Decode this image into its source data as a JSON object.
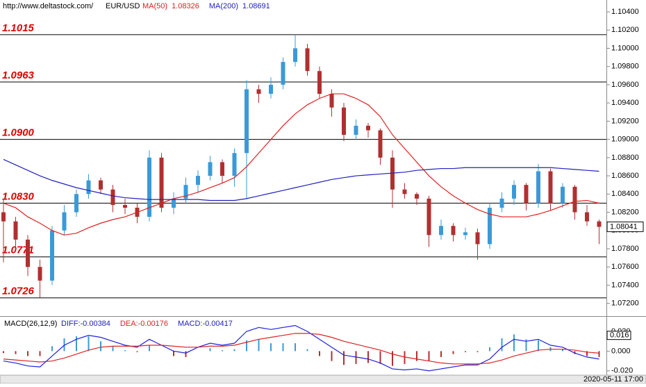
{
  "chart_data": [
    {
      "type": "candlestick",
      "source": "http://www.deltastock.com/",
      "symbol": "EUR/USD",
      "ylim": [
        1.0706,
        1.1053
      ],
      "yticks": [
        {
          "value": 1.072,
          "label": "1.07200"
        },
        {
          "value": 1.074,
          "label": "1.07400"
        },
        {
          "value": 1.076,
          "label": "1.07600"
        },
        {
          "value": 1.078,
          "label": "1.07800"
        },
        {
          "value": 1.08,
          "label": "1.08000"
        },
        {
          "value": 1.082,
          "label": "1.08200"
        },
        {
          "value": 1.084,
          "label": "1.08400"
        },
        {
          "value": 1.086,
          "label": "1.08600"
        },
        {
          "value": 1.088,
          "label": "1.08800"
        },
        {
          "value": 1.09,
          "label": "1.09000"
        },
        {
          "value": 1.092,
          "label": "1.09200"
        },
        {
          "value": 1.094,
          "label": "1.09400"
        },
        {
          "value": 1.096,
          "label": "1.09600"
        },
        {
          "value": 1.098,
          "label": "1.09800"
        },
        {
          "value": 1.1,
          "label": "1.10000"
        },
        {
          "value": 1.102,
          "label": "1.10200"
        },
        {
          "value": 1.104,
          "label": "1.10400"
        }
      ],
      "levels": [
        {
          "value": 1.1015,
          "label": "1.1015"
        },
        {
          "value": 1.0963,
          "label": "1.0963"
        },
        {
          "value": 1.09,
          "label": "1.0900"
        },
        {
          "value": 1.083,
          "label": "1.0830"
        },
        {
          "value": 1.0771,
          "label": "1.0771"
        },
        {
          "value": 1.0726,
          "label": "1.0726"
        }
      ],
      "last_price": {
        "value": 1.08041,
        "label": "1.08041"
      },
      "up_color": "#3a9ad9",
      "down_color": "#b03030",
      "candles": [
        [
          1.082,
          1.0835,
          1.0765,
          1.081
        ],
        [
          1.081,
          1.0815,
          1.0778,
          1.079
        ],
        [
          1.079,
          1.0795,
          1.075,
          1.076
        ],
        [
          1.076,
          1.0768,
          1.0726,
          1.0745
        ],
        [
          1.0745,
          1.0805,
          1.074,
          1.08
        ],
        [
          1.08,
          1.0828,
          1.0795,
          1.082
        ],
        [
          1.082,
          1.0845,
          1.0815,
          1.084
        ],
        [
          1.084,
          1.0862,
          1.0835,
          1.0855
        ],
        [
          1.0855,
          1.0858,
          1.084,
          1.0845
        ],
        [
          1.0845,
          1.085,
          1.082,
          1.0828
        ],
        [
          1.0828,
          1.0835,
          1.0818,
          1.0825
        ],
        [
          1.0825,
          1.083,
          1.0808,
          1.0815
        ],
        [
          1.0815,
          1.0888,
          1.081,
          1.088
        ],
        [
          1.088,
          1.0885,
          1.082,
          1.0825
        ],
        [
          1.0825,
          1.0842,
          1.0818,
          1.0835
        ],
        [
          1.0835,
          1.0858,
          1.083,
          1.085
        ],
        [
          1.085,
          1.0866,
          1.0842,
          1.086
        ],
        [
          1.086,
          1.0882,
          1.0855,
          1.0875
        ],
        [
          1.0875,
          1.0878,
          1.0852,
          1.086
        ],
        [
          1.086,
          1.089,
          1.0848,
          1.0885
        ],
        [
          1.0885,
          1.0965,
          1.0835,
          1.0955
        ],
        [
          1.0955,
          1.096,
          1.094,
          1.095
        ],
        [
          1.095,
          1.0968,
          1.0945,
          1.096
        ],
        [
          1.096,
          1.099,
          1.0955,
          1.0985
        ],
        [
          1.0985,
          1.1015,
          1.098,
          1.1
        ],
        [
          1.1,
          1.1005,
          1.097,
          1.0975
        ],
        [
          1.0975,
          1.098,
          1.0945,
          1.095
        ],
        [
          1.095,
          1.0955,
          1.0925,
          1.0935
        ],
        [
          1.0935,
          1.094,
          1.0898,
          1.0905
        ],
        [
          1.0905,
          1.0922,
          1.09,
          1.0915
        ],
        [
          1.0915,
          1.0918,
          1.0902,
          1.091
        ],
        [
          1.091,
          1.0912,
          1.0872,
          1.088
        ],
        [
          1.088,
          1.0888,
          1.0825,
          1.0845
        ],
        [
          1.0845,
          1.0852,
          1.0835,
          1.084
        ],
        [
          1.084,
          1.0842,
          1.0828,
          1.0835
        ],
        [
          1.0835,
          1.0838,
          1.0782,
          1.0795
        ],
        [
          1.0795,
          1.0812,
          1.079,
          1.0805
        ],
        [
          1.0805,
          1.0808,
          1.0788,
          1.0795
        ],
        [
          1.0795,
          1.0803,
          1.079,
          1.0798
        ],
        [
          1.0798,
          1.0802,
          1.0768,
          1.0785
        ],
        [
          1.0785,
          1.083,
          1.078,
          1.0825
        ],
        [
          1.0825,
          1.0842,
          1.082,
          1.0835
        ],
        [
          1.0835,
          1.0855,
          1.0828,
          1.085
        ],
        [
          1.085,
          1.0852,
          1.0822,
          1.083
        ],
        [
          1.083,
          1.0873,
          1.0825,
          1.0865
        ],
        [
          1.0865,
          1.0868,
          1.0822,
          1.083
        ],
        [
          1.083,
          1.0852,
          1.0825,
          1.0848
        ],
        [
          1.0848,
          1.085,
          1.0812,
          1.082
        ],
        [
          1.082,
          1.0828,
          1.0805,
          1.081
        ],
        [
          1.081,
          1.0812,
          1.0785,
          1.0804
        ]
      ],
      "series": [
        {
          "name": "MA(50)",
          "current": "1.08326",
          "color": "#e02020",
          "values": [
            1.083,
            1.0825,
            1.0815,
            1.0808,
            1.08,
            1.0795,
            1.0797,
            1.0803,
            1.0808,
            1.0812,
            1.0815,
            1.082,
            1.0825,
            1.083,
            1.0835,
            1.0838,
            1.0842,
            1.0847,
            1.0852,
            1.0858,
            1.087,
            1.0885,
            1.09,
            1.0915,
            1.0928,
            1.0938,
            1.0945,
            1.095,
            1.095,
            1.0945,
            1.0938,
            1.0925,
            1.0905,
            1.089,
            1.0875,
            1.086,
            1.0848,
            1.0838,
            1.083,
            1.0823,
            1.0818,
            1.0815,
            1.0815,
            1.0815,
            1.0818,
            1.0822,
            1.0827,
            1.0832,
            1.0833,
            1.083
          ]
        },
        {
          "name": "MA(200)",
          "current": "1.08691",
          "color": "#2020c0",
          "values": [
            1.0878,
            1.0872,
            1.0866,
            1.086,
            1.0855,
            1.0851,
            1.0847,
            1.0844,
            1.0841,
            1.0838,
            1.0836,
            1.0835,
            1.0834,
            1.0834,
            1.0834,
            1.0834,
            1.0834,
            1.0833,
            1.0833,
            1.0833,
            1.0835,
            1.0838,
            1.0841,
            1.0844,
            1.0847,
            1.085,
            1.0853,
            1.0856,
            1.0858,
            1.086,
            1.0861,
            1.0862,
            1.0863,
            1.0864,
            1.0866,
            1.0867,
            1.0868,
            1.0868,
            1.0869,
            1.0869,
            1.0869,
            1.0869,
            1.0869,
            1.0869,
            1.0869,
            1.0869,
            1.0868,
            1.0867,
            1.0866,
            1.0865
          ]
        }
      ]
    },
    {
      "type": "macd",
      "title": "MACD(26,12,9)",
      "date": "2020-05-11 17:00",
      "header": [
        {
          "text": "DIFF:-0.00384",
          "color": "#2020c0"
        },
        {
          "text": "DEA:-0.00176",
          "color": "#e02020"
        },
        {
          "text": "MACD:-0.00417",
          "color": "#2020c0"
        }
      ],
      "ylim": [
        -0.0244,
        0.0348
      ],
      "yticks": [
        {
          "value": -0.02,
          "label": "-0.020"
        },
        {
          "value": 0,
          "label": "0.000"
        },
        {
          "value": 0.02,
          "label": "0.020"
        }
      ],
      "last_value": {
        "value": 0.016,
        "label": "0.016"
      },
      "hist_up_color": "#3a9ad9",
      "hist_down_color": "#b03030",
      "series": [
        {
          "color": "#2020e0",
          "values": [
            -0.01,
            -0.012,
            -0.015,
            -0.016,
            -0.005,
            0.006,
            0.012,
            0.016,
            0.014,
            0.01,
            0.006,
            0.004,
            0.012,
            0.006,
            0,
            -0.002,
            0.004,
            0.008,
            0.006,
            0.008,
            0.02,
            0.024,
            0.022,
            0.024,
            0.026,
            0.02,
            0.012,
            0.004,
            -0.004,
            -0.006,
            -0.008,
            -0.012,
            -0.018,
            -0.019,
            -0.018,
            -0.02,
            -0.018,
            -0.016,
            -0.014,
            -0.014,
            -0.008,
            0.004,
            0.012,
            0.01,
            0.012,
            0.006,
            0.004,
            -0.002,
            -0.006,
            -0.008
          ]
        },
        {
          "color": "#e02020",
          "values": [
            -0.008,
            -0.009,
            -0.01,
            -0.011,
            -0.01,
            -0.007,
            -0.003,
            0.001,
            0.004,
            0.005,
            0.005,
            0.005,
            0.006,
            0.006,
            0.005,
            0.004,
            0.004,
            0.005,
            0.005,
            0.006,
            0.009,
            0.012,
            0.014,
            0.016,
            0.018,
            0.018,
            0.017,
            0.014,
            0.01,
            0.007,
            0.004,
            0.001,
            -0.003,
            -0.006,
            -0.008,
            -0.01,
            -0.012,
            -0.013,
            -0.013,
            -0.013,
            -0.012,
            -0.009,
            -0.005,
            -0.002,
            0.001,
            0.002,
            0.002,
            0.001,
            -0.001,
            -0.002
          ]
        }
      ],
      "histogram": [
        -0.002,
        -0.003,
        -0.005,
        -0.005,
        0.005,
        0.013,
        0.015,
        0.015,
        0.01,
        0.005,
        0.001,
        -0.001,
        0.006,
        0,
        -0.005,
        -0.006,
        0,
        0.003,
        0.001,
        0.002,
        0.011,
        0.012,
        0.008,
        0.008,
        0.008,
        0.002,
        -0.005,
        -0.01,
        -0.014,
        -0.013,
        -0.012,
        -0.013,
        -0.015,
        -0.013,
        -0.01,
        -0.01,
        -0.006,
        -0.003,
        -0.001,
        -0.001,
        0.004,
        0.013,
        0.017,
        0.012,
        0.011,
        0.004,
        0.002,
        -0.003,
        -0.005,
        -0.006
      ]
    }
  ]
}
